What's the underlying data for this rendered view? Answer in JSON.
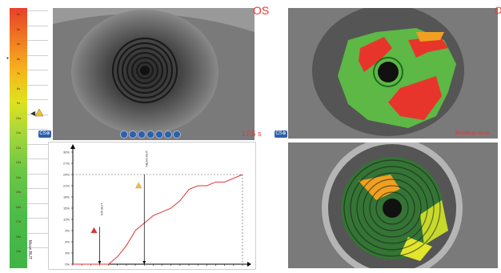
{
  "eye_side": "OS",
  "scale": {
    "ticks": [
      "5s",
      "6s",
      "4s",
      "6s",
      "7s",
      "8s",
      "9s",
      "10s",
      "11s",
      "12s",
      "13s",
      "14s",
      "15s",
      "16s",
      "17s",
      "18s",
      "19s"
    ],
    "title": "Mean BUT",
    "marker_icon": "warning-triangle-icon"
  },
  "video_panel": {
    "timer": "17.5 s",
    "badge": "CS⊕",
    "controls": [
      "skip-back-icon",
      "rewind-icon",
      "step-back-icon",
      "pause-icon",
      "step-forward-icon",
      "fast-forward-icon",
      "skip-end-icon"
    ]
  },
  "map_panel": {
    "overlay_text": "Breakup area"
  },
  "graph": {
    "y_ticks": [
      "30%",
      "27%",
      "24%",
      "21%",
      "18%",
      "15%",
      "12%",
      "9%",
      "6%",
      "3%",
      "0%"
    ],
    "first_label": "NIF-BUT",
    "mean_label": "MEAN-BUT",
    "ref_value": "24%"
  },
  "colors": {
    "accent_red": "#e33333",
    "curve": "#e33333",
    "brand_blue": "#2e5fa8"
  },
  "chart_data": {
    "type": "line",
    "x": [
      0,
      1,
      2,
      3,
      4,
      5,
      6,
      7,
      8,
      9,
      10,
      11,
      12,
      13,
      14,
      15,
      16,
      17,
      18,
      19
    ],
    "values": [
      0,
      0,
      0,
      0,
      0,
      2,
      5,
      9,
      11,
      13,
      14,
      15,
      17,
      20,
      21,
      21,
      22,
      22,
      23,
      24
    ],
    "y_ticks": [
      "30%",
      "27%",
      "24%",
      "21%",
      "18%",
      "15%",
      "12%",
      "9%",
      "6%",
      "3%",
      "0%"
    ],
    "ylim": [
      0,
      30
    ],
    "markers": [
      {
        "label": "NIF-BUT",
        "x": 3
      },
      {
        "label": "MEAN-BUT",
        "x": 8
      }
    ]
  }
}
